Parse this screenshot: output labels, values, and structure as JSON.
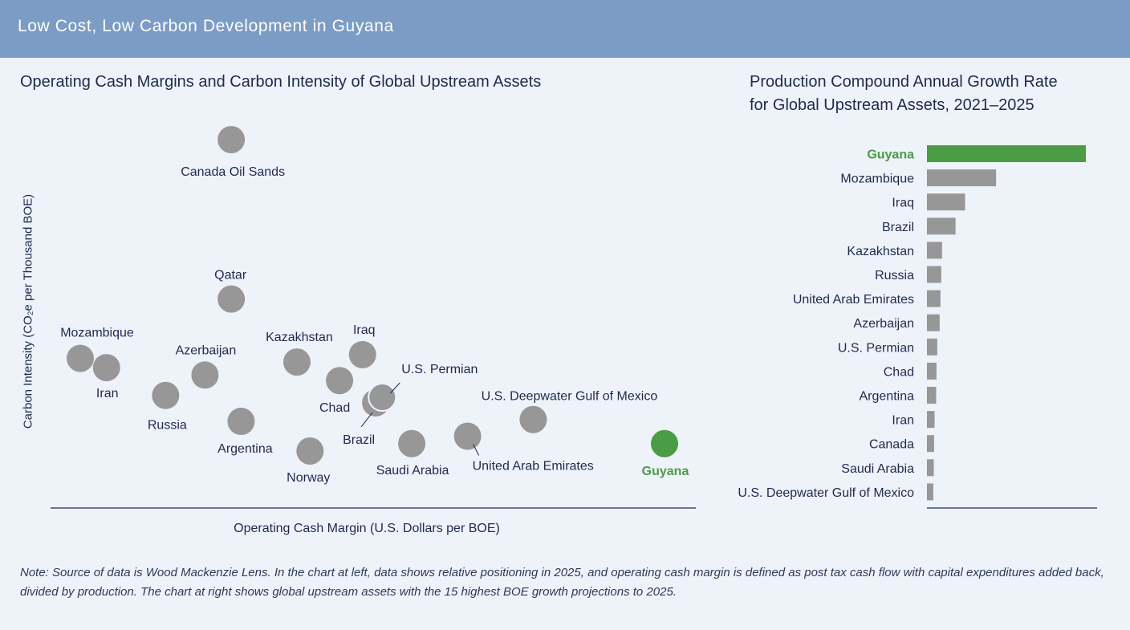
{
  "banner": {
    "title": "Low Cost, Low Carbon Development in Guyana"
  },
  "colors": {
    "banner": "#7b9cc4",
    "marker_gray": "#979797",
    "highlight_green": "#4a9c45",
    "axis": "#1d2b4c",
    "text": "#1d2b4c"
  },
  "scatter": {
    "title": "Operating Cash Margins and Carbon Intensity of Global Upstream Assets",
    "xlabel": "Operating Cash Margin (U.S. Dollars per BOE)",
    "ylabel": "Carbon Intensity (CO₂e per Thousand BOE)"
  },
  "bar": {
    "title_line1": "Production Compound Annual Growth Rate",
    "title_line2": "for Global Upstream Assets, 2021–2025"
  },
  "note": "Note: Source of data is Wood Mackenzie Lens. In the chart at left, data shows relative positioning in 2025, and operating cash margin is defined as post tax cash flow with capital expenditures added back, divided by production. The chart at right shows global upstream assets with the 15 highest BOE growth projections to 2025.",
  "chart_data": [
    {
      "type": "scatter",
      "title": "Operating Cash Margins and Carbon Intensity of Global Upstream Assets",
      "xlabel": "Operating Cash Margin (U.S. Dollars per BOE)",
      "ylabel": "Carbon Intensity (CO₂e per Thousand BOE)",
      "units_note": "relative positioning, no tick values shown",
      "xlim": [
        0,
        100
      ],
      "ylim": [
        0,
        100
      ],
      "highlight": "Guyana",
      "points": [
        {
          "name": "Canada Oil Sands",
          "x": 28,
          "y": 100
        },
        {
          "name": "Qatar",
          "x": 28,
          "y": 57
        },
        {
          "name": "Mozambique",
          "x": 5,
          "y": 41
        },
        {
          "name": "Iran",
          "x": 9,
          "y": 38.5
        },
        {
          "name": "Russia",
          "x": 18,
          "y": 31
        },
        {
          "name": "Azerbaijan",
          "x": 24,
          "y": 36.5
        },
        {
          "name": "Argentina",
          "x": 29.5,
          "y": 24
        },
        {
          "name": "Kazakhstan",
          "x": 38,
          "y": 40
        },
        {
          "name": "Norway",
          "x": 40,
          "y": 16
        },
        {
          "name": "Chad",
          "x": 44.5,
          "y": 35
        },
        {
          "name": "Iraq",
          "x": 48,
          "y": 42
        },
        {
          "name": "Brazil",
          "x": 50,
          "y": 29
        },
        {
          "name": "U.S. Permian",
          "x": 51,
          "y": 30.5
        },
        {
          "name": "Saudi Arabia",
          "x": 55.5,
          "y": 18
        },
        {
          "name": "United Arab Emirates",
          "x": 64,
          "y": 20
        },
        {
          "name": "U.S. Deepwater Gulf of Mexico",
          "x": 74,
          "y": 24.5
        },
        {
          "name": "Guyana",
          "x": 94,
          "y": 18
        }
      ]
    },
    {
      "type": "bar",
      "orientation": "horizontal",
      "title": "Production Compound Annual Growth Rate for Global Upstream Assets, 2021–2025",
      "units_note": "relative values, no axis ticks shown",
      "highlight": "Guyana",
      "categories": [
        "Guyana",
        "Mozambique",
        "Iraq",
        "Brazil",
        "Kazakhstan",
        "Russia",
        "United Arab Emirates",
        "Azerbaijan",
        "U.S. Permian",
        "Chad",
        "Argentina",
        "Iran",
        "Canada",
        "Saudi Arabia",
        "U.S. Deepwater Gulf of Mexico"
      ],
      "values": [
        100,
        43.5,
        24,
        18,
        9.5,
        9,
        8.5,
        8,
        6.5,
        6,
        5.8,
        4.8,
        4.5,
        4.3,
        4
      ]
    }
  ]
}
